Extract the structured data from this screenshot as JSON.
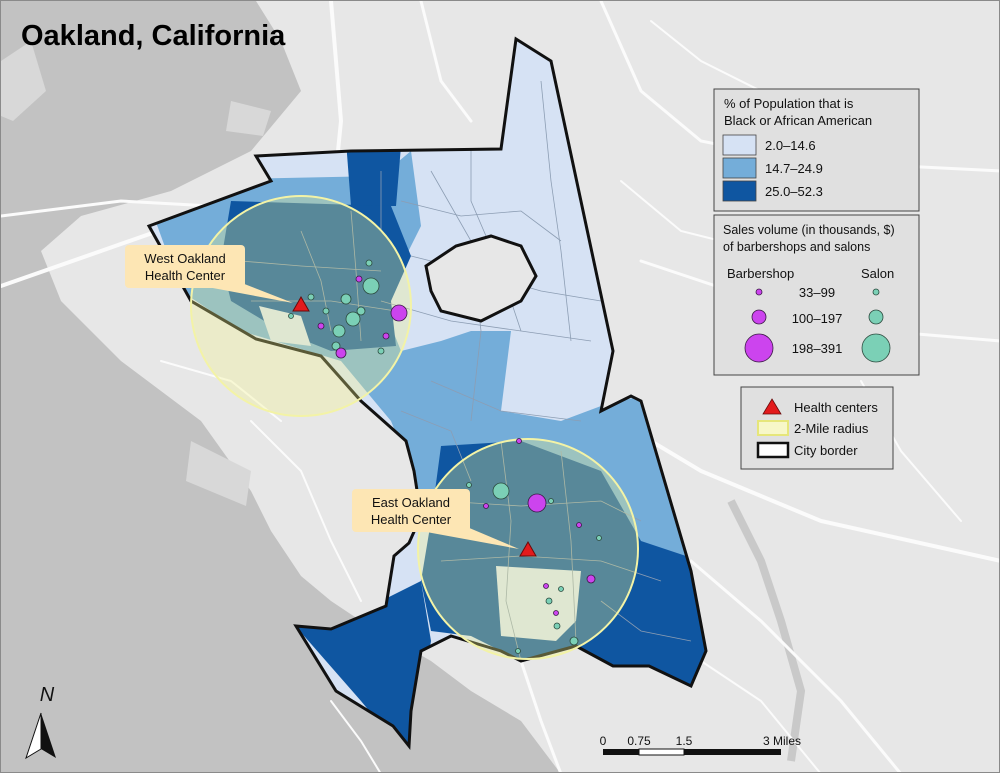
{
  "map": {
    "title": "Oakland, California",
    "colors": {
      "water": "#c2c2c2",
      "land": "#e7e7e7",
      "tier_low": "#d6e2f4",
      "tier_mid": "#74add9",
      "tier_high": "#0f56a1",
      "barbershop": "#cc44ee",
      "salon": "#7bd0b6",
      "radius": "#f2f28a",
      "health_center": "#e31a1c",
      "callout": "#fde6b4"
    }
  },
  "health_centers": [
    {
      "label_line1": "West Oakland",
      "label_line2": "Health Center"
    },
    {
      "label_line1": "East Oakland",
      "label_line2": "Health Center"
    }
  ],
  "legend_population": {
    "title_line1": "% of Population that is",
    "title_line2": "Black or African American",
    "classes": [
      {
        "label": "2.0–14.6",
        "color": "#d6e2f4"
      },
      {
        "label": "14.7–24.9",
        "color": "#74add9"
      },
      {
        "label": "25.0–52.3",
        "color": "#0f56a1"
      }
    ]
  },
  "legend_sales": {
    "title_line1": "Sales volume (in thousands, $)",
    "title_line2": "of barbershops and salons",
    "barbershop_label": "Barbershop",
    "salon_label": "Salon",
    "classes": [
      {
        "label": "33–99"
      },
      {
        "label": "100–197"
      },
      {
        "label": "198–391"
      }
    ]
  },
  "legend_symbols": {
    "health_centers": "Health centers",
    "radius": "2-Mile radius",
    "border": "City border"
  },
  "scale_bar": {
    "ticks": [
      "0",
      "0.75",
      "1.5",
      "3 Miles"
    ]
  },
  "north_arrow": {
    "label": "N"
  }
}
